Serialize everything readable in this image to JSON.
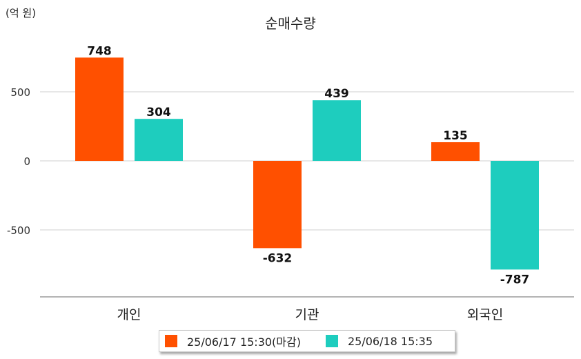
{
  "chart_data": {
    "type": "bar",
    "title": "순매수량",
    "unit_label": "(억 원)",
    "categories": [
      "개인",
      "기관",
      "외국인"
    ],
    "series": [
      {
        "name": "25/06/17 15:30(마감)",
        "color": "#ff5000",
        "values": [
          748,
          -632,
          135
        ]
      },
      {
        "name": "25/06/18 15:35",
        "color": "#1ecdbe",
        "values": [
          304,
          439,
          -787
        ]
      }
    ],
    "yticks": [
      500,
      0,
      -500
    ],
    "ylim": [
      -980,
      880
    ],
    "grid": true,
    "legend_position": "bottom-center"
  }
}
